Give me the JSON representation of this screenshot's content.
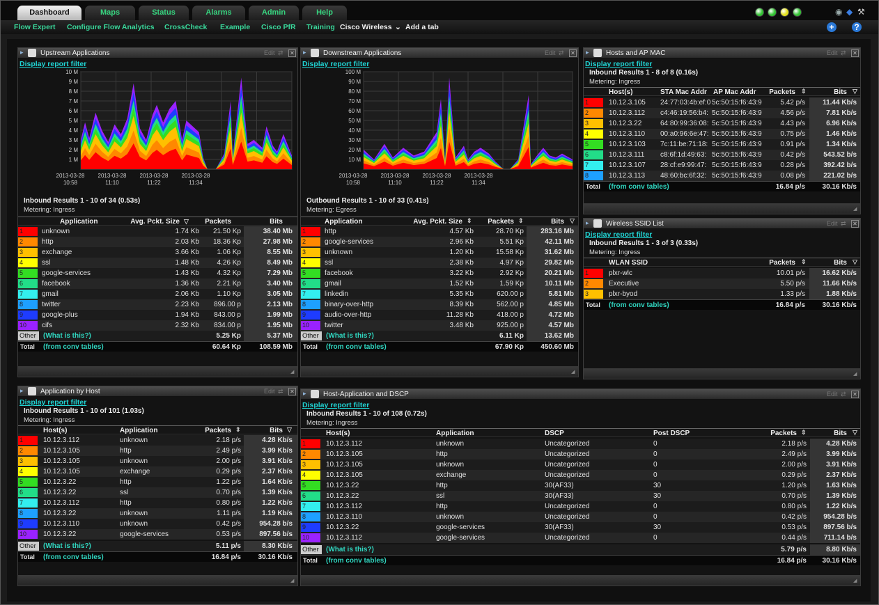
{
  "tabs": [
    {
      "label": "Dashboard"
    },
    {
      "label": "Maps"
    },
    {
      "label": "Status"
    },
    {
      "label": "Alarms"
    },
    {
      "label": "Admin"
    },
    {
      "label": "Help"
    }
  ],
  "status_dots": [
    "#33c433",
    "#33c433",
    "#e3e01c",
    "#33c433"
  ],
  "subnav": {
    "items": [
      "Flow Expert",
      "Configure Flow Analytics",
      "CrossCheck",
      "Example",
      "Cisco PfR",
      "Training"
    ],
    "cisco_wireless": "Cisco Wireless",
    "add_tab": "Add a tab"
  },
  "rank_colors": [
    "#ff0000",
    "#ff8800",
    "#ffc000",
    "#ffff00",
    "#33dd22",
    "#22dd88",
    "#33eeee",
    "#1ea0ff",
    "#1e3cff",
    "#9a22ff"
  ],
  "common": {
    "edit": "Edit",
    "filter": "Display report filter",
    "from_conv": "(from conv tables)",
    "what": "(What is this?)",
    "other": "Other",
    "total": "Total"
  },
  "upstream": {
    "title": "Upstream Applications",
    "summary": "Inbound Results 1 - 10 of 34 (0.53s)",
    "metering": "Metering: Ingress",
    "headers": [
      "Application",
      "Avg. Pckt. Size",
      "Packets",
      "Bits"
    ],
    "rows": [
      [
        "1",
        "unknown",
        "1.74 Kb",
        "21.50 Kp",
        "38.40 Mb"
      ],
      [
        "2",
        "http",
        "2.03 Kb",
        "18.36 Kp",
        "27.98 Mb"
      ],
      [
        "3",
        "exchange",
        "3.66 Kb",
        "1.06 Kp",
        "8.55 Mb"
      ],
      [
        "4",
        "ssl",
        "1.48 Kb",
        "4.26 Kp",
        "8.49 Mb"
      ],
      [
        "5",
        "google-services",
        "1.43 Kb",
        "4.32 Kp",
        "7.29 Mb"
      ],
      [
        "6",
        "facebook",
        "1.36 Kb",
        "2.21 Kp",
        "3.40 Mb"
      ],
      [
        "7",
        "gmail",
        "2.06 Kb",
        "1.10 Kp",
        "3.05 Mb"
      ],
      [
        "8",
        "twitter",
        "2.23 Kb",
        "896.00 p",
        "2.13 Mb"
      ],
      [
        "9",
        "google-plus",
        "1.94 Kb",
        "843.00 p",
        "1.99 Mb"
      ],
      [
        "10",
        "cifs",
        "2.32 Kb",
        "834.00 p",
        "1.95 Mb"
      ]
    ],
    "other": {
      "packets": "5.25 Kp",
      "bits": "5.37 Mb"
    },
    "total": {
      "packets": "60.64 Kp",
      "bits": "108.59 Mb"
    }
  },
  "downstream": {
    "title": "Downstream Applications",
    "summary": "Outbound Results 1 - 10 of 33 (0.41s)",
    "metering": "Metering: Egress",
    "headers": [
      "Application",
      "Avg. Pckt. Size",
      "Packets",
      "Bits"
    ],
    "rows": [
      [
        "1",
        "http",
        "4.57 Kb",
        "28.70 Kp",
        "283.16 Mb"
      ],
      [
        "2",
        "google-services",
        "2.96 Kb",
        "5.51 Kp",
        "42.11 Mb"
      ],
      [
        "3",
        "unknown",
        "1.20 Kb",
        "15.58 Kp",
        "31.62 Mb"
      ],
      [
        "4",
        "ssl",
        "2.38 Kb",
        "4.97 Kp",
        "29.82 Mb"
      ],
      [
        "5",
        "facebook",
        "3.22 Kb",
        "2.92 Kp",
        "20.21 Mb"
      ],
      [
        "6",
        "gmail",
        "1.52 Kb",
        "1.59 Kp",
        "10.11 Mb"
      ],
      [
        "7",
        "linkedin",
        "5.35 Kb",
        "620.00 p",
        "5.81 Mb"
      ],
      [
        "8",
        "binary-over-http",
        "8.39 Kb",
        "562.00 p",
        "4.85 Mb"
      ],
      [
        "9",
        "audio-over-http",
        "11.28 Kb",
        "418.00 p",
        "4.72 Mb"
      ],
      [
        "10",
        "twitter",
        "3.48 Kb",
        "925.00 p",
        "4.57 Mb"
      ]
    ],
    "other": {
      "packets": "6.11 Kp",
      "bits": "13.62 Mb"
    },
    "total": {
      "packets": "67.90 Kp",
      "bits": "450.60 Mb"
    }
  },
  "hosts_mac": {
    "title": "Hosts and  AP MAC",
    "summary": "Inbound Results 1 - 8 of 8 (0.16s)",
    "metering": "Metering: Ingress",
    "headers": [
      "Host(s)",
      "STA Mac Addr",
      "AP Mac Addr",
      "Packets",
      "Bits"
    ],
    "rows": [
      [
        "1",
        "10.12.3.105",
        "24:77:03:4b:ef:0",
        "5c:50:15:f6:43:9",
        "5.42 p/s",
        "11.44 Kb/s"
      ],
      [
        "2",
        "10.12.3.112",
        "c4:46:19:56:b4:",
        "5c:50:15:f6:43:9",
        "4.56 p/s",
        "7.81 Kb/s"
      ],
      [
        "3",
        "10.12.3.22",
        "64:80:99:36:08:",
        "5c:50:15:f6:43:9",
        "4.43 p/s",
        "6.96 Kb/s"
      ],
      [
        "4",
        "10.12.3.110",
        "00:a0:96:6e:47:",
        "5c:50:15:f6:43:9",
        "0.75 p/s",
        "1.46 Kb/s"
      ],
      [
        "5",
        "10.12.3.103",
        "7c:11:be:71:18:",
        "5c:50:15:f6:43:9",
        "0.91 p/s",
        "1.34 Kb/s"
      ],
      [
        "6",
        "10.12.3.111",
        "c8:6f:1d:49:63:",
        "5c:50:15:f6:43:9",
        "0.42 p/s",
        "543.52 b/s"
      ],
      [
        "7",
        "10.12.3.107",
        "28:cf:e9:99:47:",
        "5c:50:15:f6:43:9",
        "0.28 p/s",
        "392.42 b/s"
      ],
      [
        "8",
        "10.12.3.113",
        "48:60:bc:6f:32:",
        "5c:50:15:f6:43:9",
        "0.08 p/s",
        "221.02 b/s"
      ]
    ],
    "total": {
      "packets": "16.84 p/s",
      "bits": "30.16 Kb/s"
    }
  },
  "ssid": {
    "title": "Wireless SSID List",
    "summary": "Inbound Results 1 - 3 of 3 (0.33s)",
    "metering": "Metering: Ingress",
    "headers": [
      "WLAN SSID",
      "Packets",
      "Bits"
    ],
    "rows": [
      [
        "1",
        "plxr-wlc",
        "10.01 p/s",
        "16.62 Kb/s"
      ],
      [
        "2",
        "Executive",
        "5.50 p/s",
        "11.66 Kb/s"
      ],
      [
        "3",
        "plxr-byod",
        "1.33 p/s",
        "1.88 Kb/s"
      ]
    ],
    "total": {
      "packets": "16.84 p/s",
      "bits": "30.16 Kb/s"
    }
  },
  "app_host": {
    "title": "Application by Host",
    "summary": "Inbound Results 1 - 10 of 101 (1.03s)",
    "metering": "Metering: Ingress",
    "headers": [
      "Host(s)",
      "Application",
      "Packets",
      "Bits"
    ],
    "rows": [
      [
        "1",
        "10.12.3.112",
        "unknown",
        "2.18 p/s",
        "4.28 Kb/s"
      ],
      [
        "2",
        "10.12.3.105",
        "http",
        "2.49 p/s",
        "3.99 Kb/s"
      ],
      [
        "3",
        "10.12.3.105",
        "unknown",
        "2.00 p/s",
        "3.91 Kb/s"
      ],
      [
        "4",
        "10.12.3.105",
        "exchange",
        "0.29 p/s",
        "2.37 Kb/s"
      ],
      [
        "5",
        "10.12.3.22",
        "http",
        "1.22 p/s",
        "1.64 Kb/s"
      ],
      [
        "6",
        "10.12.3.22",
        "ssl",
        "0.70 p/s",
        "1.39 Kb/s"
      ],
      [
        "7",
        "10.12.3.112",
        "http",
        "0.80 p/s",
        "1.22 Kb/s"
      ],
      [
        "8",
        "10.12.3.22",
        "unknown",
        "1.11 p/s",
        "1.19 Kb/s"
      ],
      [
        "9",
        "10.12.3.110",
        "unknown",
        "0.42 p/s",
        "954.28 b/s"
      ],
      [
        "10",
        "10.12.3.22",
        "google-services",
        "0.53 p/s",
        "897.56 b/s"
      ]
    ],
    "other": {
      "packets": "5.11 p/s",
      "bits": "8.30 Kb/s"
    },
    "total": {
      "packets": "16.84 p/s",
      "bits": "30.16 Kb/s"
    }
  },
  "host_dscp": {
    "title": "Host-Application and DSCP",
    "summary": "Inbound Results 1 - 10 of 108 (0.72s)",
    "metering": "Metering: Ingress",
    "headers": [
      "Host(s)",
      "Application",
      "DSCP",
      "Post DSCP",
      "Packets",
      "Bits"
    ],
    "rows": [
      [
        "1",
        "10.12.3.112",
        "unknown",
        "Uncategorized",
        "0",
        "2.18 p/s",
        "4.28 Kb/s"
      ],
      [
        "2",
        "10.12.3.105",
        "http",
        "Uncategorized",
        "0",
        "2.49 p/s",
        "3.99 Kb/s"
      ],
      [
        "3",
        "10.12.3.105",
        "unknown",
        "Uncategorized",
        "0",
        "2.00 p/s",
        "3.91 Kb/s"
      ],
      [
        "4",
        "10.12.3.105",
        "exchange",
        "Uncategorized",
        "0",
        "0.29 p/s",
        "2.37 Kb/s"
      ],
      [
        "5",
        "10.12.3.22",
        "http",
        "30(AF33)",
        "30",
        "1.20 p/s",
        "1.63 Kb/s"
      ],
      [
        "6",
        "10.12.3.22",
        "ssl",
        "30(AF33)",
        "30",
        "0.70 p/s",
        "1.39 Kb/s"
      ],
      [
        "7",
        "10.12.3.112",
        "http",
        "Uncategorized",
        "0",
        "0.80 p/s",
        "1.22 Kb/s"
      ],
      [
        "8",
        "10.12.3.110",
        "unknown",
        "Uncategorized",
        "0",
        "0.42 p/s",
        "954.28 b/s"
      ],
      [
        "9",
        "10.12.3.22",
        "google-services",
        "30(AF33)",
        "30",
        "0.53 p/s",
        "897.56 b/s"
      ],
      [
        "10",
        "10.12.3.112",
        "google-services",
        "Uncategorized",
        "0",
        "0.44 p/s",
        "711.14 b/s"
      ]
    ],
    "other": {
      "packets": "5.79 p/s",
      "bits": "8.80 Kb/s"
    },
    "total": {
      "packets": "16.84 p/s",
      "bits": "30.16 Kb/s"
    }
  },
  "chart_data": [
    {
      "type": "area",
      "title": "",
      "y_ticks": [
        "10 M",
        "9 M",
        "8 M",
        "7 M",
        "6 M",
        "5 M",
        "4 M",
        "3 M",
        "2 M",
        "1 M"
      ],
      "ylim": [
        0,
        10000000
      ],
      "x_ticks": [
        [
          "2013-03-28",
          "10:58"
        ],
        [
          "2013-03-28",
          "11:10"
        ],
        [
          "2013-03-28",
          "11:22"
        ],
        [
          "2013-03-28",
          "11:34"
        ]
      ],
      "peaks": [
        [
          0.0,
          3.0
        ],
        [
          0.02,
          4.8
        ],
        [
          0.04,
          3.2
        ],
        [
          0.07,
          5.8
        ],
        [
          0.1,
          4.0
        ],
        [
          0.13,
          2.8
        ],
        [
          0.16,
          4.6
        ],
        [
          0.19,
          3.6
        ],
        [
          0.22,
          5.2
        ],
        [
          0.25,
          8.8
        ],
        [
          0.28,
          4.2
        ],
        [
          0.31,
          3.0
        ],
        [
          0.34,
          5.6
        ],
        [
          0.36,
          6.6
        ],
        [
          0.39,
          4.8
        ],
        [
          0.42,
          6.2
        ],
        [
          0.45,
          7.0
        ],
        [
          0.48,
          3.0
        ],
        [
          0.5,
          5.0
        ],
        [
          0.53,
          4.4
        ],
        [
          0.56,
          3.8
        ],
        [
          0.58,
          1.2
        ],
        [
          0.6,
          0.0
        ],
        [
          0.64,
          0.0
        ],
        [
          0.68,
          1.6
        ],
        [
          0.71,
          7.0
        ],
        [
          0.72,
          1.4
        ],
        [
          0.76,
          9.4
        ],
        [
          0.79,
          2.6
        ],
        [
          0.82,
          3.0
        ],
        [
          0.86,
          2.2
        ],
        [
          0.88,
          4.4
        ],
        [
          0.91,
          2.4
        ],
        [
          0.93,
          1.8
        ],
        [
          0.96,
          3.6
        ],
        [
          1.0,
          1.4
        ]
      ]
    },
    {
      "type": "area",
      "title": "",
      "y_ticks": [
        "100 M",
        "90 M",
        "80 M",
        "70 M",
        "60 M",
        "50 M",
        "40 M",
        "30 M",
        "20 M",
        "10 M"
      ],
      "ylim": [
        0,
        100000000
      ],
      "x_ticks": [
        [
          "2013-03-28",
          "10:58"
        ],
        [
          "2013-03-28",
          "11:10"
        ],
        [
          "2013-03-28",
          "11:22"
        ],
        [
          "2013-03-28",
          "11:34"
        ]
      ],
      "peaks": [
        [
          0.0,
          2.0
        ],
        [
          0.05,
          1.0
        ],
        [
          0.1,
          2.6
        ],
        [
          0.14,
          1.2
        ],
        [
          0.19,
          2.2
        ],
        [
          0.24,
          1.4
        ],
        [
          0.29,
          1.8
        ],
        [
          0.35,
          3.8
        ],
        [
          0.37,
          7.2
        ],
        [
          0.39,
          1.0
        ],
        [
          0.41,
          9.4
        ],
        [
          0.44,
          1.2
        ],
        [
          0.48,
          2.4
        ],
        [
          0.5,
          1.0
        ],
        [
          0.53,
          1.8
        ],
        [
          0.56,
          2.2
        ],
        [
          0.6,
          1.6
        ],
        [
          0.63,
          0.8
        ],
        [
          0.67,
          0.0
        ],
        [
          0.7,
          0.0
        ],
        [
          0.74,
          1.0
        ],
        [
          0.79,
          7.6
        ],
        [
          0.8,
          0.5
        ],
        [
          0.83,
          1.4
        ],
        [
          0.86,
          2.2
        ],
        [
          0.89,
          1.4
        ],
        [
          0.92,
          1.2
        ],
        [
          0.95,
          1.6
        ],
        [
          1.0,
          1.0
        ]
      ]
    }
  ]
}
